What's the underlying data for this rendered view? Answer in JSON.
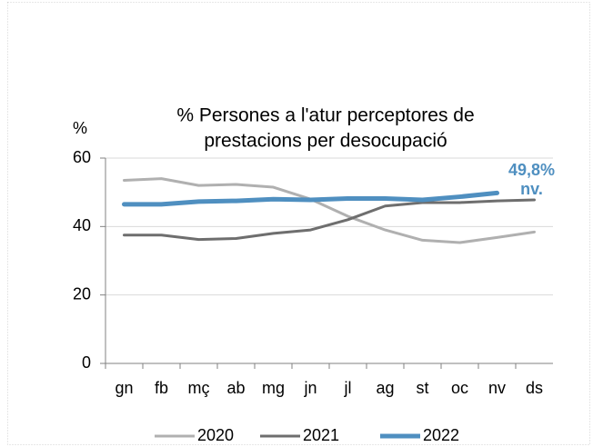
{
  "chart_data": {
    "type": "line",
    "title": [
      "% Persones a l'atur perceptores de",
      "prestacions per desocupació"
    ],
    "y_label": "%",
    "categories": [
      "gn",
      "fb",
      "mç",
      "ab",
      "mg",
      "jn",
      "jl",
      "ag",
      "st",
      "oc",
      "nv",
      "ds"
    ],
    "series": [
      {
        "name": "2020",
        "color": "#b0b0b0",
        "width": 3,
        "values": [
          53.5,
          54,
          52,
          52.3,
          51.5,
          48,
          43,
          39,
          36,
          35.3,
          36.8,
          38.4
        ]
      },
      {
        "name": "2021",
        "color": "#6e6e6e",
        "width": 3,
        "values": [
          37.5,
          37.5,
          36.2,
          36.5,
          38,
          39,
          42,
          46,
          47,
          47,
          47.5,
          47.8
        ]
      },
      {
        "name": "2022",
        "color": "#4f8fc0",
        "width": 5,
        "values": [
          46.5,
          46.5,
          47.3,
          47.5,
          48,
          47.8,
          48.2,
          48.2,
          47.8,
          48.7,
          49.8,
          null
        ],
        "value_labels": [
          null,
          null,
          null,
          null,
          null,
          null,
          null,
          null,
          null,
          null,
          "49,8%",
          null
        ]
      }
    ],
    "annotation": "nv.",
    "ylim": [
      0,
      60
    ],
    "yticks": [
      0,
      20,
      40,
      60
    ],
    "grid": true
  }
}
